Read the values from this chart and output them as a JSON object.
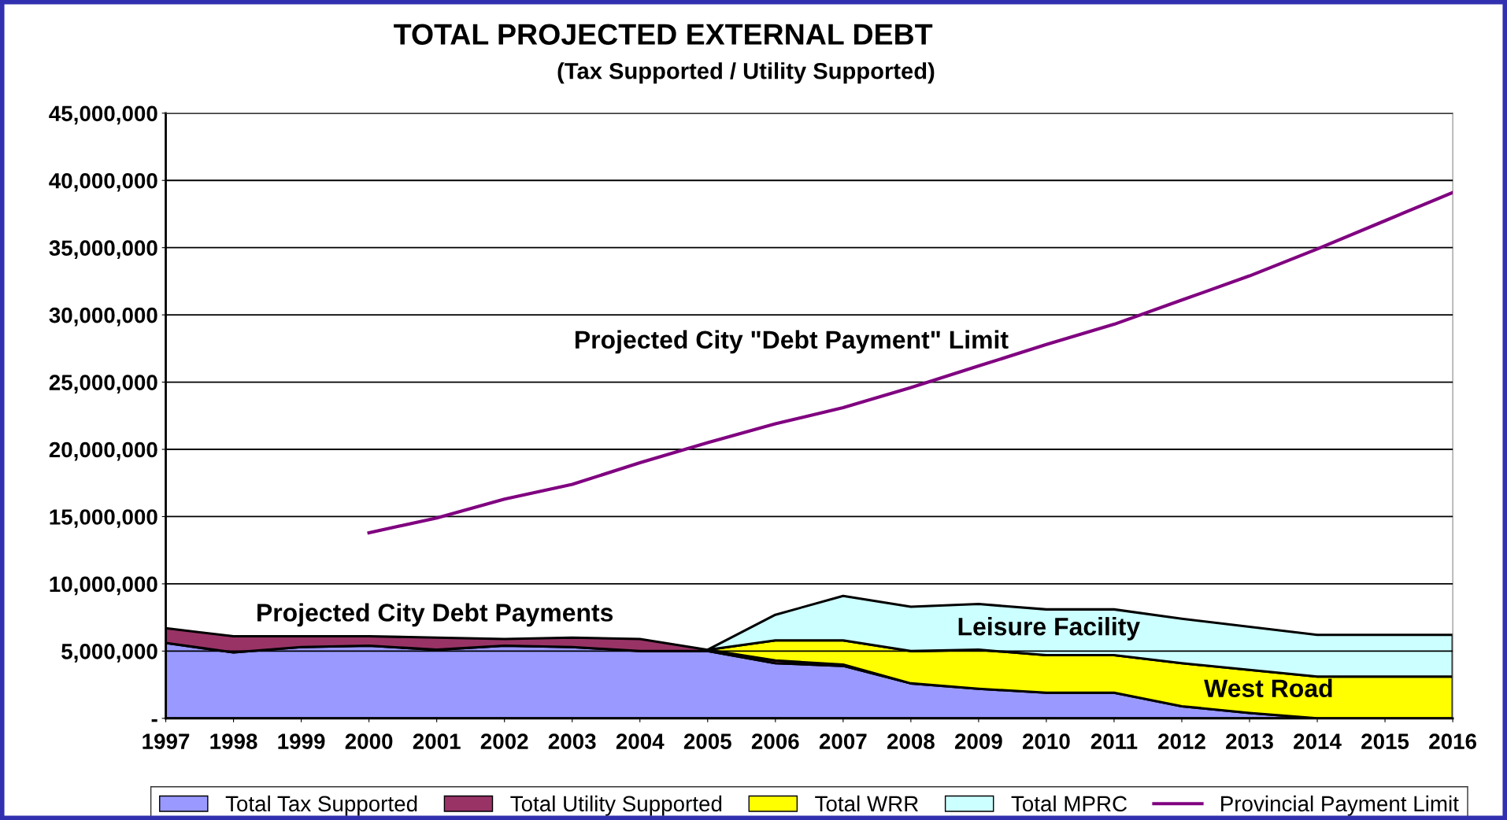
{
  "chart_data": {
    "type": "area",
    "stacked": true,
    "title": "TOTAL PROJECTED EXTERNAL DEBT",
    "subtitle": "(Tax Supported / Utility Supported)",
    "categories": [
      "1997",
      "1998",
      "1999",
      "2000",
      "2001",
      "2002",
      "2003",
      "2004",
      "2005",
      "2006",
      "2007",
      "2008",
      "2009",
      "2010",
      "2011",
      "2012",
      "2013",
      "2014",
      "2015",
      "2016"
    ],
    "series": [
      {
        "name": "Total Tax Supported",
        "color": "#9999ff",
        "values": [
          5600000,
          4900000,
          5300000,
          5400000,
          5100000,
          5400000,
          5300000,
          5000000,
          5000000,
          4100000,
          3900000,
          2600000,
          2200000,
          1900000,
          1900000,
          900000,
          400000,
          0,
          0,
          0
        ]
      },
      {
        "name": "Total Utility Supported",
        "color": "#993366",
        "values": [
          1100000,
          1200000,
          800000,
          700000,
          900000,
          500000,
          700000,
          900000,
          100000,
          200000,
          100000,
          0,
          null,
          null,
          null,
          null,
          null,
          null,
          null,
          null
        ]
      },
      {
        "name": "Total WRR",
        "color": "#ffff00",
        "values": [
          null,
          null,
          null,
          null,
          null,
          null,
          null,
          null,
          0,
          1500000,
          1800000,
          2400000,
          2900000,
          2800000,
          2800000,
          3200000,
          3200000,
          3100000,
          3100000,
          3100000
        ]
      },
      {
        "name": "Total MPRC",
        "color": "#ccffff",
        "values": [
          null,
          null,
          null,
          null,
          null,
          null,
          null,
          null,
          0,
          1900000,
          3300000,
          3300000,
          3400000,
          3400000,
          3400000,
          3300000,
          3200000,
          3100000,
          3100000,
          3100000
        ]
      },
      {
        "name": "Provincial Payment Limit",
        "type": "line",
        "color": "#800080",
        "values": [
          null,
          null,
          null,
          13800000,
          14900000,
          16300000,
          17400000,
          19000000,
          20500000,
          21900000,
          23100000,
          24600000,
          26200000,
          27800000,
          29300000,
          31100000,
          32900000,
          34900000,
          37000000,
          39100000
        ]
      }
    ],
    "ylim": [
      0,
      45000000
    ],
    "yticks": [
      {
        "value": 0,
        "label": "-"
      },
      {
        "value": 5000000,
        "label": "5,000,000"
      },
      {
        "value": 10000000,
        "label": "10,000,000"
      },
      {
        "value": 15000000,
        "label": "15,000,000"
      },
      {
        "value": 20000000,
        "label": "20,000,000"
      },
      {
        "value": 25000000,
        "label": "25,000,000"
      },
      {
        "value": 30000000,
        "label": "30,000,000"
      },
      {
        "value": 35000000,
        "label": "35,000,000"
      },
      {
        "value": 40000000,
        "label": "40,000,000"
      },
      {
        "value": 45000000,
        "label": "45,000,000"
      }
    ],
    "grid": "y",
    "legend": "bottom",
    "annotations": [
      "Projected City \"Debt Payment\" Limit",
      "Projected City Debt Payments",
      "Leisure Facility",
      "West Road"
    ]
  }
}
